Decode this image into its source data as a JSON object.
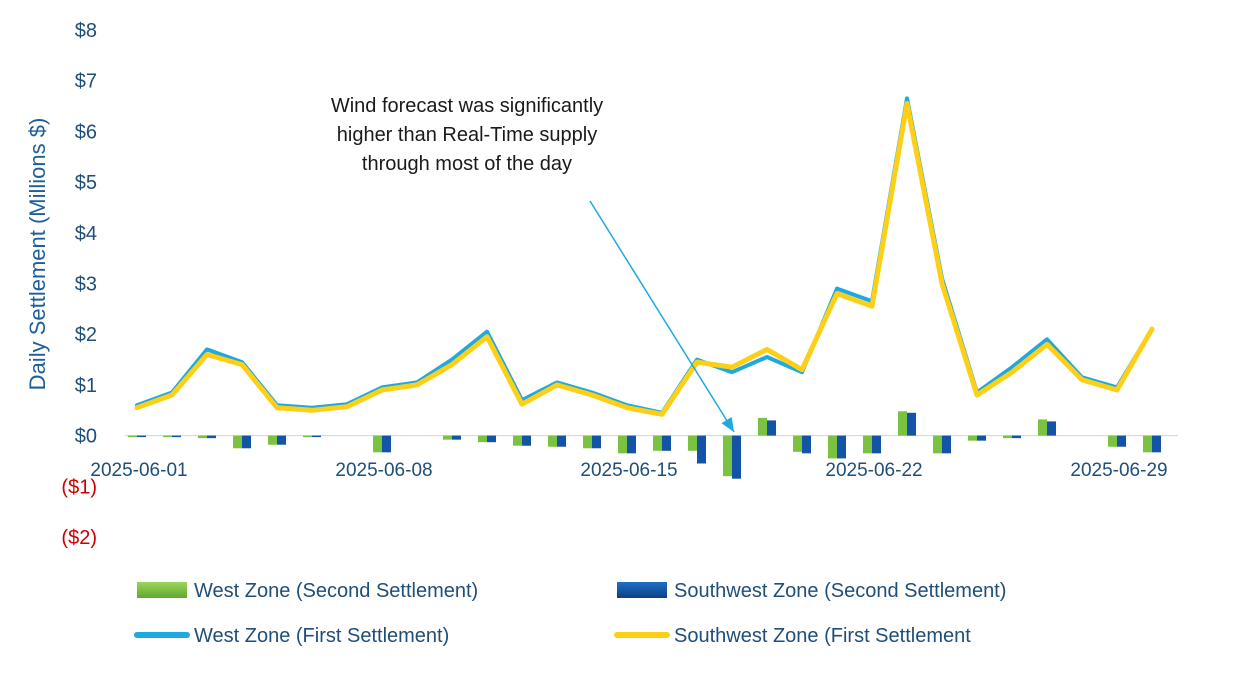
{
  "chart_data": {
    "type": "bar+line",
    "ylabel": "Daily Settlement (Millions $)",
    "ylim": [
      -2,
      8
    ],
    "yticks": [
      {
        "value": 8,
        "label": "$8"
      },
      {
        "value": 7,
        "label": "$7"
      },
      {
        "value": 6,
        "label": "$6"
      },
      {
        "value": 5,
        "label": "$5"
      },
      {
        "value": 4,
        "label": "$4"
      },
      {
        "value": 3,
        "label": "$3"
      },
      {
        "value": 2,
        "label": "$2"
      },
      {
        "value": 1,
        "label": "$1"
      },
      {
        "value": 0,
        "label": "$0"
      },
      {
        "value": -1,
        "label": "($1)"
      },
      {
        "value": -2,
        "label": "($2)"
      }
    ],
    "x": [
      "2025-06-01",
      "2025-06-02",
      "2025-06-03",
      "2025-06-04",
      "2025-06-05",
      "2025-06-06",
      "2025-06-07",
      "2025-06-08",
      "2025-06-09",
      "2025-06-10",
      "2025-06-11",
      "2025-06-12",
      "2025-06-13",
      "2025-06-14",
      "2025-06-15",
      "2025-06-16",
      "2025-06-17",
      "2025-06-18",
      "2025-06-19",
      "2025-06-20",
      "2025-06-21",
      "2025-06-22",
      "2025-06-23",
      "2025-06-24",
      "2025-06-25",
      "2025-06-26",
      "2025-06-27",
      "2025-06-28",
      "2025-06-29",
      "2025-06-30"
    ],
    "xtick_labels": [
      {
        "x": "2025-06-01",
        "label": "2025-06-01"
      },
      {
        "x": "2025-06-08",
        "label": "2025-06-08"
      },
      {
        "x": "2025-06-15",
        "label": "2025-06-15"
      },
      {
        "x": "2025-06-22",
        "label": "2025-06-22"
      },
      {
        "x": "2025-06-29",
        "label": "2025-06-29"
      }
    ],
    "series": [
      {
        "name": "West Zone (Second Settlement)",
        "kind": "bar",
        "color": "#7cc242",
        "values": [
          -0.03,
          -0.03,
          -0.05,
          -0.25,
          -0.18,
          -0.03,
          0,
          -0.33,
          0,
          -0.08,
          -0.13,
          -0.2,
          -0.22,
          -0.25,
          -0.35,
          -0.3,
          -0.3,
          -0.8,
          0.35,
          -0.32,
          -0.45,
          -0.35,
          0.48,
          -0.35,
          -0.1,
          -0.05,
          0.32,
          0,
          -0.22,
          -0.33
        ]
      },
      {
        "name": "Southwest Zone (Second Settlement)",
        "kind": "bar",
        "color": "#1454a6",
        "values": [
          -0.03,
          -0.03,
          -0.05,
          -0.25,
          -0.18,
          -0.03,
          0,
          -0.33,
          0,
          -0.08,
          -0.13,
          -0.2,
          -0.22,
          -0.25,
          -0.35,
          -0.3,
          -0.55,
          -0.85,
          0.3,
          -0.35,
          -0.45,
          -0.35,
          0.45,
          -0.35,
          -0.1,
          -0.05,
          0.28,
          0,
          -0.22,
          -0.33
        ]
      },
      {
        "name": "West Zone (First Settlement)",
        "kind": "line",
        "color": "#1ea9e1",
        "values": [
          0.6,
          0.85,
          1.7,
          1.45,
          0.6,
          0.55,
          0.62,
          0.95,
          1.05,
          1.5,
          2.05,
          0.7,
          1.05,
          0.85,
          0.6,
          0.45,
          1.5,
          1.25,
          1.55,
          1.25,
          2.9,
          2.65,
          6.65,
          3.1,
          0.85,
          1.35,
          1.9,
          1.15,
          0.95,
          2.1
        ]
      },
      {
        "name": "Southwest Zone (First Settlement",
        "kind": "line",
        "color": "#fdd017",
        "values": [
          0.55,
          0.8,
          1.6,
          1.4,
          0.55,
          0.5,
          0.57,
          0.9,
          1.0,
          1.4,
          1.95,
          0.62,
          1.0,
          0.8,
          0.55,
          0.42,
          1.45,
          1.35,
          1.7,
          1.3,
          2.8,
          2.55,
          6.55,
          3.0,
          0.8,
          1.25,
          1.8,
          1.1,
          0.9,
          2.1
        ]
      }
    ],
    "annotation": {
      "lines": [
        "Wind forecast was significantly",
        "higher than Real-Time supply",
        "through most of the day"
      ],
      "points_to": "2025-06-18"
    },
    "legend_position": "bottom",
    "grid": false
  },
  "colors": {
    "axis_text": "#1f4e79",
    "negative_text": "#cc0000",
    "arrow": "#1ea9e1"
  }
}
